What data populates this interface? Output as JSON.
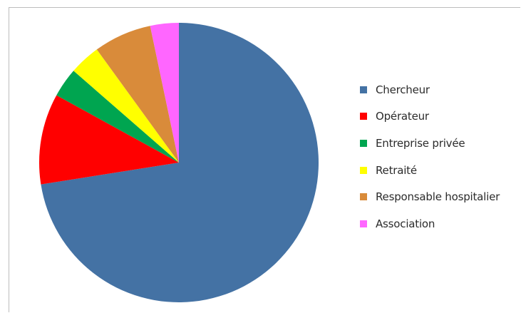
{
  "chart_data": {
    "type": "pie",
    "title": "",
    "legend_position": "right",
    "categories": [
      "Chercheur",
      "Opérateur",
      "Entreprise privée",
      "Retraité",
      "Responsable hospitalier",
      "Association"
    ],
    "values": [
      72.5,
      10.5,
      3.4,
      3.6,
      6.7,
      3.3
    ],
    "colors": [
      "#4472A4",
      "#FF0000",
      "#00A550",
      "#FFFF00",
      "#D98B3A",
      "#FF66FF"
    ]
  }
}
